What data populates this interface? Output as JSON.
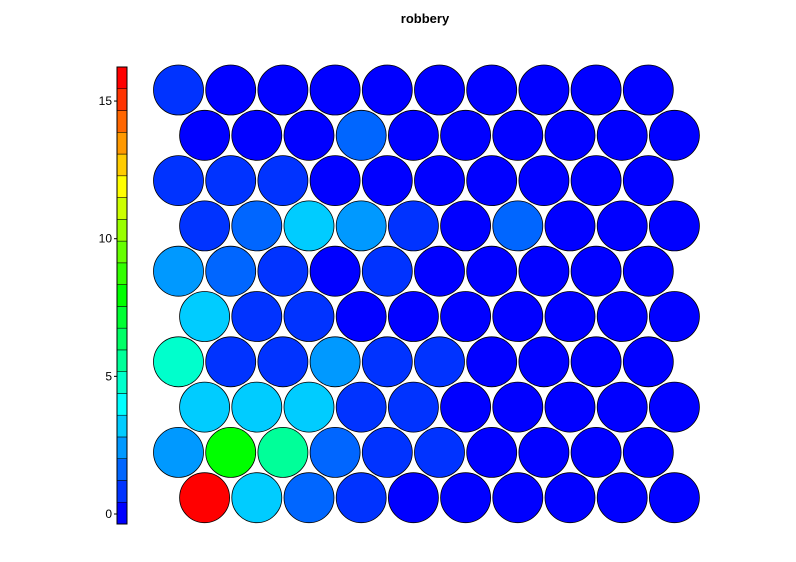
{
  "chart_data": {
    "type": "heatmap",
    "subtype": "hexagonal-som-grid",
    "title": "robbery",
    "colorbar": {
      "min": 0,
      "max": 16.6,
      "ticks": [
        0,
        5,
        10,
        15
      ],
      "tick_labels": [
        "0",
        "5",
        "10",
        "15"
      ],
      "colormap": [
        "#0000ff",
        "#0033ff",
        "#0066ff",
        "#0099ff",
        "#00ccff",
        "#00ffff",
        "#00ffcc",
        "#00ff99",
        "#00ff66",
        "#00ff33",
        "#00ff00",
        "#33ff00",
        "#66ff00",
        "#99ff00",
        "#ccff00",
        "#ffff00",
        "#ffcc00",
        "#ff9900",
        "#ff6600",
        "#ff3300",
        "#ff0000"
      ]
    },
    "grid": {
      "columns": 10,
      "rows": 10,
      "row_offset": "odd rows from bottom shifted right"
    },
    "rows_top_to_bottom": [
      [
        1.5,
        0.2,
        0.3,
        0.2,
        0.2,
        0.3,
        0.3,
        0.2,
        0.2,
        0.3
      ],
      [
        0.3,
        0.5,
        0.5,
        1.6,
        0.4,
        0.3,
        0.3,
        0.2,
        0.2,
        0.3
      ],
      [
        1.2,
        1.5,
        1.4,
        0.5,
        0.3,
        0.3,
        0.2,
        0.2,
        0.2,
        0.3
      ],
      [
        1.0,
        2.2,
        3.3,
        2.5,
        1.4,
        0.3,
        1.6,
        0.3,
        0.2,
        0.3
      ],
      [
        2.4,
        2.2,
        1.5,
        0.4,
        1.5,
        0.3,
        0.3,
        0.3,
        0.3,
        0.3
      ],
      [
        3.4,
        1.5,
        1.2,
        0.4,
        0.2,
        0.3,
        0.3,
        0.2,
        0.2,
        0.3
      ],
      [
        4.9,
        1.2,
        1.0,
        2.4,
        1.5,
        1.2,
        0.3,
        0.3,
        0.3,
        0.3
      ],
      [
        3.2,
        3.2,
        3.2,
        1.4,
        1.0,
        0.3,
        0.2,
        0.2,
        0.2,
        0.3
      ],
      [
        3.0,
        8.0,
        6.0,
        1.8,
        1.2,
        1.0,
        0.3,
        0.3,
        0.3,
        0.3
      ],
      [
        16.5,
        3.2,
        1.8,
        1.2,
        0.3,
        0.2,
        0.2,
        0.3,
        0.2,
        0.3
      ]
    ]
  }
}
